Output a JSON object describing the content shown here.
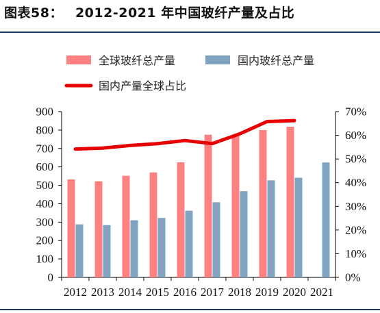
{
  "title": {
    "label": "图表58：",
    "text": "2012-2021 年中国玻纤产量及占比"
  },
  "chart_data": {
    "type": "bar",
    "categories": [
      "2012",
      "2013",
      "2014",
      "2015",
      "2016",
      "2017",
      "2018",
      "2019",
      "2020",
      "2021"
    ],
    "series": [
      {
        "name": "全球玻纤总产量",
        "kind": "bar",
        "axis": "left",
        "color": "#ff8080",
        "values": [
          532,
          522,
          552,
          570,
          625,
          775,
          770,
          800,
          818,
          null
        ]
      },
      {
        "name": "国内玻纤总产量",
        "kind": "bar",
        "axis": "left",
        "color": "#7fa3c0",
        "values": [
          288,
          284,
          310,
          323,
          362,
          408,
          468,
          527,
          541,
          624
        ]
      },
      {
        "name": "国内产量全球占比",
        "kind": "line",
        "axis": "right",
        "color": "#e60000",
        "values": [
          0.542,
          0.546,
          0.557,
          0.565,
          0.578,
          0.565,
          0.606,
          0.658,
          0.662,
          null
        ]
      }
    ],
    "y_left": {
      "min": 0,
      "max": 900,
      "ticks": [
        "0",
        "100",
        "200",
        "300",
        "400",
        "500",
        "600",
        "700",
        "800",
        "900"
      ]
    },
    "y_right": {
      "min": 0,
      "max": 0.7,
      "ticks": [
        "0%",
        "10%",
        "20%",
        "30%",
        "40%",
        "50%",
        "60%",
        "70%"
      ]
    },
    "legend_placement": "top",
    "grid": false
  }
}
